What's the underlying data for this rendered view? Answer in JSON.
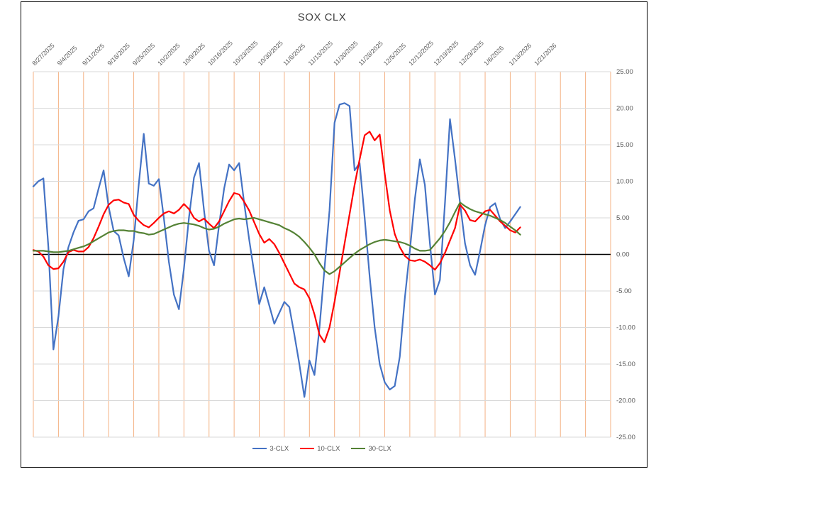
{
  "chart_data": {
    "type": "line",
    "title": "SOX CLX",
    "xlabel": "",
    "ylabel": "",
    "ylim": [
      -25,
      25
    ],
    "y_tick_step": 5,
    "y_tick_labels": [
      "25.00",
      "20.00",
      "15.00",
      "10.00",
      "5.00",
      "0.00",
      "-5.00",
      "-10.00",
      "-15.00",
      "-20.00",
      "-25.00"
    ],
    "x_tick_labels": [
      "8/27/2025",
      "9/4/2025",
      "9/11/2025",
      "9/18/2025",
      "9/25/2025",
      "10/2/2025",
      "10/9/2025",
      "10/16/2025",
      "10/23/2025",
      "10/30/2025",
      "11/6/2025",
      "11/13/2025",
      "11/20/2025",
      "11/28/2025",
      "12/5/2025",
      "12/12/2025",
      "12/19/2025",
      "12/29/2025",
      "1/6/2026",
      "1/13/2026",
      "1/21/2026"
    ],
    "points_per_tick": 5,
    "x_domain_points": 115,
    "grid": {
      "vertical_color": "#F4B183",
      "horizontal_color": "#D9D9D9",
      "zero_line_color": "#000000"
    },
    "legend_position": "bottom",
    "series": [
      {
        "name": "3-CLX",
        "color": "#4472C4",
        "values": [
          9.3,
          10.0,
          10.4,
          1.0,
          -13.0,
          -8.5,
          -2.0,
          1.0,
          3.0,
          4.6,
          4.8,
          5.9,
          6.3,
          9.0,
          11.5,
          6.5,
          3.2,
          2.6,
          -0.5,
          -3.0,
          2.0,
          9.5,
          16.5,
          9.7,
          9.4,
          10.3,
          5.0,
          -1.0,
          -5.5,
          -7.5,
          -2.0,
          5.0,
          10.5,
          12.5,
          6.0,
          0.5,
          -1.5,
          4.0,
          9.0,
          12.3,
          11.5,
          12.5,
          7.0,
          2.0,
          -2.5,
          -6.8,
          -4.5,
          -7.0,
          -9.5,
          -8.0,
          -6.5,
          -7.2,
          -11.0,
          -15.0,
          -19.5,
          -14.5,
          -16.5,
          -10.0,
          -2.0,
          6.0,
          18.0,
          20.5,
          20.7,
          20.3,
          11.5,
          12.5,
          5.0,
          -3.0,
          -10.0,
          -15.0,
          -17.5,
          -18.5,
          -18.0,
          -14.0,
          -6.0,
          0.5,
          7.5,
          13.0,
          9.5,
          1.5,
          -5.5,
          -3.5,
          7.0,
          18.5,
          13.0,
          7.0,
          1.5,
          -1.5,
          -2.8,
          0.5,
          4.0,
          6.5,
          7.0,
          4.8,
          3.6,
          4.5,
          5.5,
          6.5
        ]
      },
      {
        "name": "10-CLX",
        "color": "#FF0000",
        "values": [
          0.6,
          0.4,
          -0.3,
          -1.5,
          -2.0,
          -1.9,
          -1.0,
          0.3,
          0.6,
          0.4,
          0.4,
          1.0,
          2.2,
          3.8,
          5.5,
          6.8,
          7.4,
          7.5,
          7.1,
          6.9,
          5.4,
          4.6,
          4.0,
          3.7,
          4.3,
          5.0,
          5.6,
          5.9,
          5.6,
          6.1,
          6.9,
          6.2,
          5.0,
          4.5,
          4.9,
          4.2,
          3.6,
          4.5,
          5.9,
          7.3,
          8.4,
          8.2,
          7.2,
          6.0,
          4.4,
          2.8,
          1.6,
          2.1,
          1.4,
          0.2,
          -1.2,
          -2.6,
          -4.0,
          -4.5,
          -4.8,
          -6.0,
          -8.2,
          -11.0,
          -12.0,
          -10.0,
          -6.5,
          -2.5,
          1.5,
          5.5,
          9.5,
          13.0,
          16.3,
          16.8,
          15.6,
          16.4,
          11.0,
          6.0,
          2.8,
          1.0,
          -0.2,
          -0.8,
          -0.9,
          -0.7,
          -1.0,
          -1.5,
          -2.1,
          -1.2,
          0.2,
          1.9,
          3.6,
          6.8,
          6.0,
          4.7,
          4.5,
          5.2,
          5.9,
          6.1,
          5.3,
          4.5,
          3.9,
          3.3,
          3.0,
          3.7
        ]
      },
      {
        "name": "30-CLX",
        "color": "#548235",
        "values": [
          0.5,
          0.5,
          0.5,
          0.4,
          0.3,
          0.3,
          0.4,
          0.5,
          0.7,
          0.9,
          1.1,
          1.4,
          1.8,
          2.2,
          2.6,
          3.0,
          3.2,
          3.3,
          3.3,
          3.2,
          3.2,
          3.0,
          2.9,
          2.7,
          2.8,
          3.1,
          3.4,
          3.7,
          4.0,
          4.2,
          4.3,
          4.2,
          4.1,
          3.9,
          3.6,
          3.4,
          3.5,
          3.8,
          4.2,
          4.5,
          4.8,
          4.9,
          4.8,
          4.9,
          5.0,
          4.8,
          4.6,
          4.4,
          4.2,
          4.0,
          3.6,
          3.3,
          2.9,
          2.4,
          1.7,
          0.9,
          0.0,
          -1.2,
          -2.2,
          -2.7,
          -2.3,
          -1.7,
          -1.1,
          -0.5,
          0.1,
          0.6,
          1.0,
          1.4,
          1.7,
          1.9,
          2.0,
          1.9,
          1.8,
          1.7,
          1.5,
          1.2,
          0.8,
          0.5,
          0.5,
          0.6,
          1.4,
          2.2,
          3.2,
          4.4,
          5.8,
          7.1,
          6.6,
          6.2,
          5.9,
          5.7,
          5.5,
          5.3,
          5.0,
          4.7,
          4.3,
          3.8,
          3.3,
          2.7
        ]
      }
    ]
  }
}
